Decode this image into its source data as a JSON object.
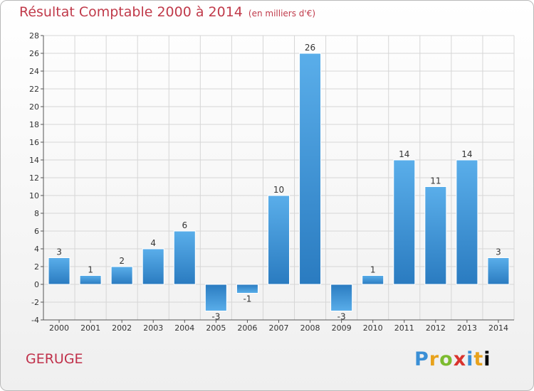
{
  "header": {
    "title": "Résultat Comptable 2000 à 2014",
    "unit": "(en milliers d'€)"
  },
  "commune": "GERUGE",
  "logo": {
    "letters": [
      "P",
      "r",
      "o",
      "x",
      "i",
      "t",
      "i"
    ]
  },
  "colors": {
    "title": "#c03a4a",
    "bar_light": "#5aaeea",
    "bar_dark": "#2a7bc0",
    "grid": "#d8d8d8"
  },
  "chart_data": {
    "type": "bar",
    "title": "Résultat Comptable 2000 à 2014",
    "ylabel": "(en milliers d'€)",
    "categories": [
      "2000",
      "2001",
      "2002",
      "2003",
      "2004",
      "2005",
      "2006",
      "2007",
      "2008",
      "2009",
      "2010",
      "2011",
      "2012",
      "2013",
      "2014"
    ],
    "values": [
      3,
      1,
      2,
      4,
      6,
      -3,
      -1,
      10,
      26,
      -3,
      1,
      14,
      11,
      14,
      3
    ],
    "ylim": [
      -4,
      28
    ],
    "yticks": [
      -4,
      -2,
      0,
      2,
      4,
      6,
      8,
      10,
      12,
      14,
      16,
      18,
      20,
      22,
      24,
      26,
      28
    ],
    "grid": true
  }
}
